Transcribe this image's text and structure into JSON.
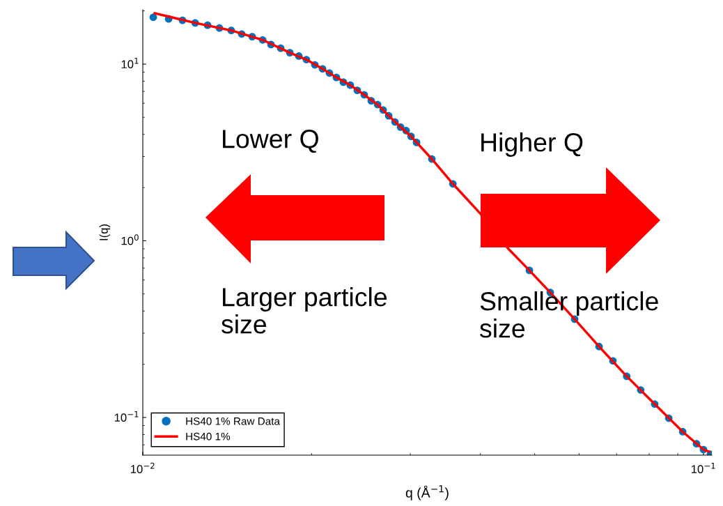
{
  "chart_data": {
    "type": "scatter",
    "xlabel": "q (Å$^{−1}$)",
    "ylabel": "I(q)",
    "log": "xy",
    "xlim": [
      0.01,
      0.1035
    ],
    "ylim": [
      0.0612,
      20.3
    ],
    "xticks": [
      {
        "value": 0.01,
        "label": "10$^{−2}$"
      },
      {
        "value": 0.1,
        "label": "10$^{−1}$"
      }
    ],
    "yticks": [
      {
        "value": 0.1,
        "label": "10$^{−1}$"
      },
      {
        "value": 1,
        "label": "10$^{0}$"
      },
      {
        "value": 10,
        "label": "10$^{1}$"
      }
    ],
    "grid": false,
    "legend": "bottom left",
    "marker": "circle",
    "annotations": [
      "Lower Q",
      "Higher Q",
      "Larger particle\nsize",
      "Smaller particle\nsize"
    ],
    "series": [
      {
        "name": "HS40 1% Raw Data",
        "color": "#0072bd",
        "x": [
          0.01044,
          0.01112,
          0.01177,
          0.0124,
          0.01305,
          0.0137,
          0.01438,
          0.01501,
          0.01567,
          0.01636,
          0.01693,
          0.01762,
          0.01829,
          0.01898,
          0.01958,
          0.02027,
          0.02092,
          0.02152,
          0.02215,
          0.02279,
          0.02345,
          0.02413,
          0.02483,
          0.02555,
          0.02623,
          0.02683,
          0.02745,
          0.02817,
          0.02882,
          0.02949,
          0.03009,
          0.03078,
          0.03278,
          0.03573,
          0.04004,
          0.04237,
          0.04487,
          0.04892,
          0.0533,
          0.05891,
          0.06512,
          0.06894,
          0.07295,
          0.07727,
          0.08185,
          0.0867,
          0.09183,
          0.09718,
          0.1,
          0.1029
        ],
        "values": [
          18.4,
          18.0,
          17.7,
          17.1,
          16.6,
          16.0,
          15.5,
          14.8,
          14.3,
          13.7,
          12.9,
          12.3,
          11.6,
          11.1,
          10.6,
          9.9,
          9.4,
          8.9,
          8.4,
          7.9,
          7.6,
          7.1,
          6.7,
          6.2,
          5.9,
          5.5,
          5.1,
          4.7,
          4.4,
          4.2,
          3.9,
          3.6,
          2.9,
          2.1,
          null,
          null,
          null,
          0.68,
          0.51,
          0.36,
          0.252,
          0.209,
          0.171,
          0.143,
          0.119,
          0.099,
          0.083,
          0.071,
          0.0658,
          0.0618
        ]
      },
      {
        "name": "HS40 1%",
        "type": "line",
        "color": "#ff0000",
        "marker": "none",
        "line_style": "solid",
        "x": [
          0.0105,
          0.0124,
          0.01438,
          0.01636,
          0.01829,
          0.01958,
          0.02092,
          0.02215,
          0.02345,
          0.02483,
          0.02623,
          0.02745,
          0.02882,
          0.03009,
          0.03278,
          0.03573,
          0.04004,
          0.04487,
          0.04892,
          0.0533,
          0.05891,
          0.06512,
          0.07295,
          0.08185,
          0.09183,
          0.1,
          0.1024
        ],
        "values": [
          19.4,
          17.1,
          15.5,
          13.7,
          11.6,
          10.6,
          9.4,
          8.4,
          7.6,
          6.7,
          5.9,
          5.1,
          4.4,
          3.9,
          2.9,
          2.1,
          1.42,
          0.9,
          0.68,
          0.51,
          0.36,
          0.252,
          0.171,
          0.119,
          0.083,
          0.0658,
          0.064
        ]
      }
    ]
  }
}
